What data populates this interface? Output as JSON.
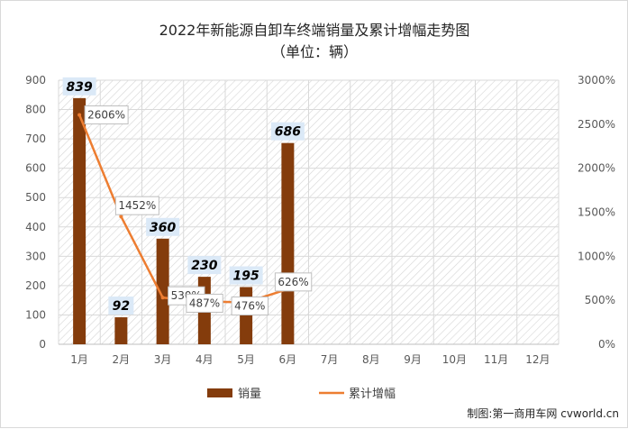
{
  "chart_data": {
    "type": "bar",
    "title": "2022年新能源自卸车终端销量及累计增幅走势图",
    "subtitle": "（单位：辆）",
    "categories": [
      "1月",
      "2月",
      "3月",
      "4月",
      "5月",
      "6月",
      "7月",
      "8月",
      "9月",
      "10月",
      "11月",
      "12月"
    ],
    "series": [
      {
        "name": "销量",
        "type": "bar",
        "axis": "left",
        "color": "#843c0c",
        "values": [
          839,
          92,
          360,
          230,
          195,
          686,
          null,
          null,
          null,
          null,
          null,
          null
        ]
      },
      {
        "name": "累计增幅",
        "type": "line",
        "axis": "right",
        "color": "#ed7d31",
        "values": [
          2606,
          1452,
          530,
          487,
          476,
          626,
          null,
          null,
          null,
          null,
          null,
          null
        ]
      }
    ],
    "y_left": {
      "min": 0,
      "max": 900,
      "step": 100,
      "ticks": [
        "0",
        "100",
        "200",
        "300",
        "400",
        "500",
        "600",
        "700",
        "800",
        "900"
      ]
    },
    "y_right": {
      "min": 0,
      "max": 3000,
      "step": 500,
      "ticks": [
        "0%",
        "500%",
        "1000%",
        "1500%",
        "2000%",
        "2500%",
        "3000%"
      ]
    },
    "bar_labels": [
      "839",
      "92",
      "360",
      "230",
      "195",
      "686"
    ],
    "line_labels": [
      "2606%",
      "1452%",
      "530%",
      "487%",
      "476%",
      "626%"
    ],
    "legend": {
      "placement": "bottom",
      "items": [
        "销量",
        "累计增幅"
      ]
    },
    "grid": true,
    "source": "制图:第一商用车网 cvworld.cn"
  }
}
